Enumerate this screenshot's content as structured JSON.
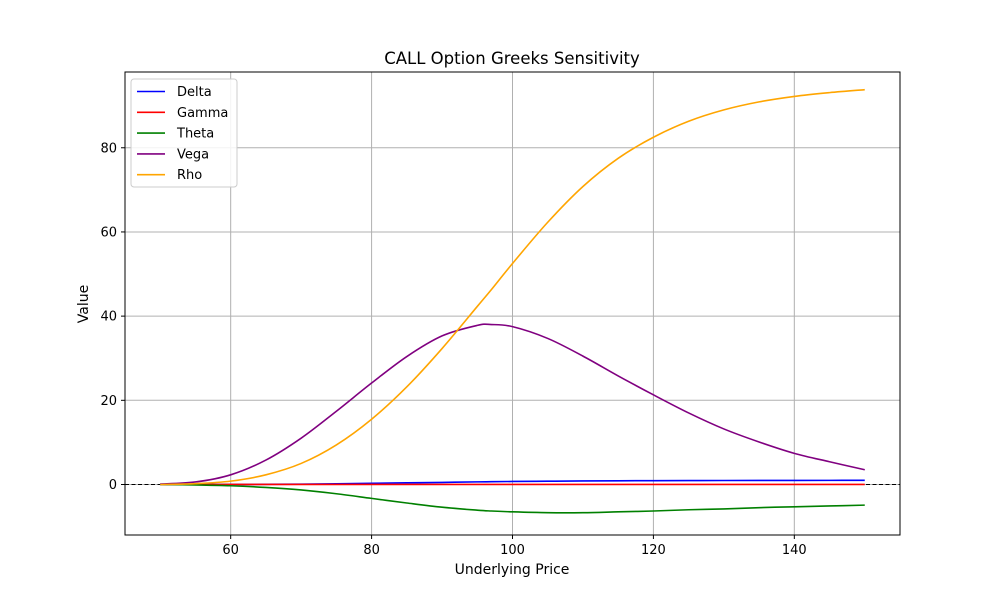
{
  "chart_data": {
    "type": "line",
    "title": "CALL Option Greeks Sensitivity",
    "xlabel": "Underlying Price",
    "ylabel": "Value",
    "xlim": [
      45,
      155
    ],
    "ylim": [
      -12,
      98
    ],
    "xticks": [
      60,
      80,
      100,
      120,
      140
    ],
    "yticks": [
      0,
      20,
      40,
      60,
      80
    ],
    "grid": true,
    "legend": "top-left",
    "reference_line": {
      "y": 0,
      "color": "#000000",
      "style": "dashed"
    },
    "x": [
      50,
      55,
      60,
      65,
      70,
      75,
      80,
      85,
      90,
      95,
      97,
      100,
      105,
      110,
      115,
      120,
      125,
      130,
      135,
      140,
      145,
      150
    ],
    "series": [
      {
        "name": "Delta",
        "color": "#0000ff",
        "values": [
          0.0,
          0.003,
          0.01,
          0.03,
          0.08,
          0.16,
          0.27,
          0.39,
          0.5,
          0.62,
          0.66,
          0.72,
          0.78,
          0.84,
          0.88,
          0.91,
          0.93,
          0.95,
          0.96,
          0.97,
          0.98,
          0.99
        ]
      },
      {
        "name": "Gamma",
        "color": "#ff0000",
        "values": [
          0.0,
          0.001,
          0.002,
          0.005,
          0.009,
          0.013,
          0.017,
          0.019,
          0.02,
          0.019,
          0.018,
          0.017,
          0.015,
          0.013,
          0.011,
          0.009,
          0.007,
          0.006,
          0.005,
          0.004,
          0.003,
          0.002
        ]
      },
      {
        "name": "Theta",
        "color": "#008000",
        "values": [
          0.0,
          -0.1,
          -0.3,
          -0.7,
          -1.3,
          -2.2,
          -3.3,
          -4.4,
          -5.4,
          -6.1,
          -6.3,
          -6.5,
          -6.7,
          -6.7,
          -6.5,
          -6.3,
          -6.0,
          -5.8,
          -5.5,
          -5.3,
          -5.1,
          -4.9
        ]
      },
      {
        "name": "Vega",
        "color": "#800080",
        "values": [
          0.1,
          0.6,
          2.3,
          5.8,
          11.0,
          17.4,
          24.1,
          30.4,
          35.3,
          37.8,
          38.0,
          37.5,
          34.7,
          30.5,
          25.8,
          21.3,
          17.0,
          13.2,
          10.1,
          7.4,
          5.4,
          3.5
        ]
      },
      {
        "name": "Rho",
        "color": "#ffa500",
        "values": [
          0.0,
          0.2,
          0.8,
          2.3,
          5.0,
          9.4,
          15.5,
          23.2,
          32.3,
          42.3,
          46.3,
          52.5,
          62.3,
          70.8,
          77.5,
          82.5,
          86.3,
          89.0,
          90.9,
          92.2,
          93.1,
          93.8
        ]
      }
    ]
  }
}
